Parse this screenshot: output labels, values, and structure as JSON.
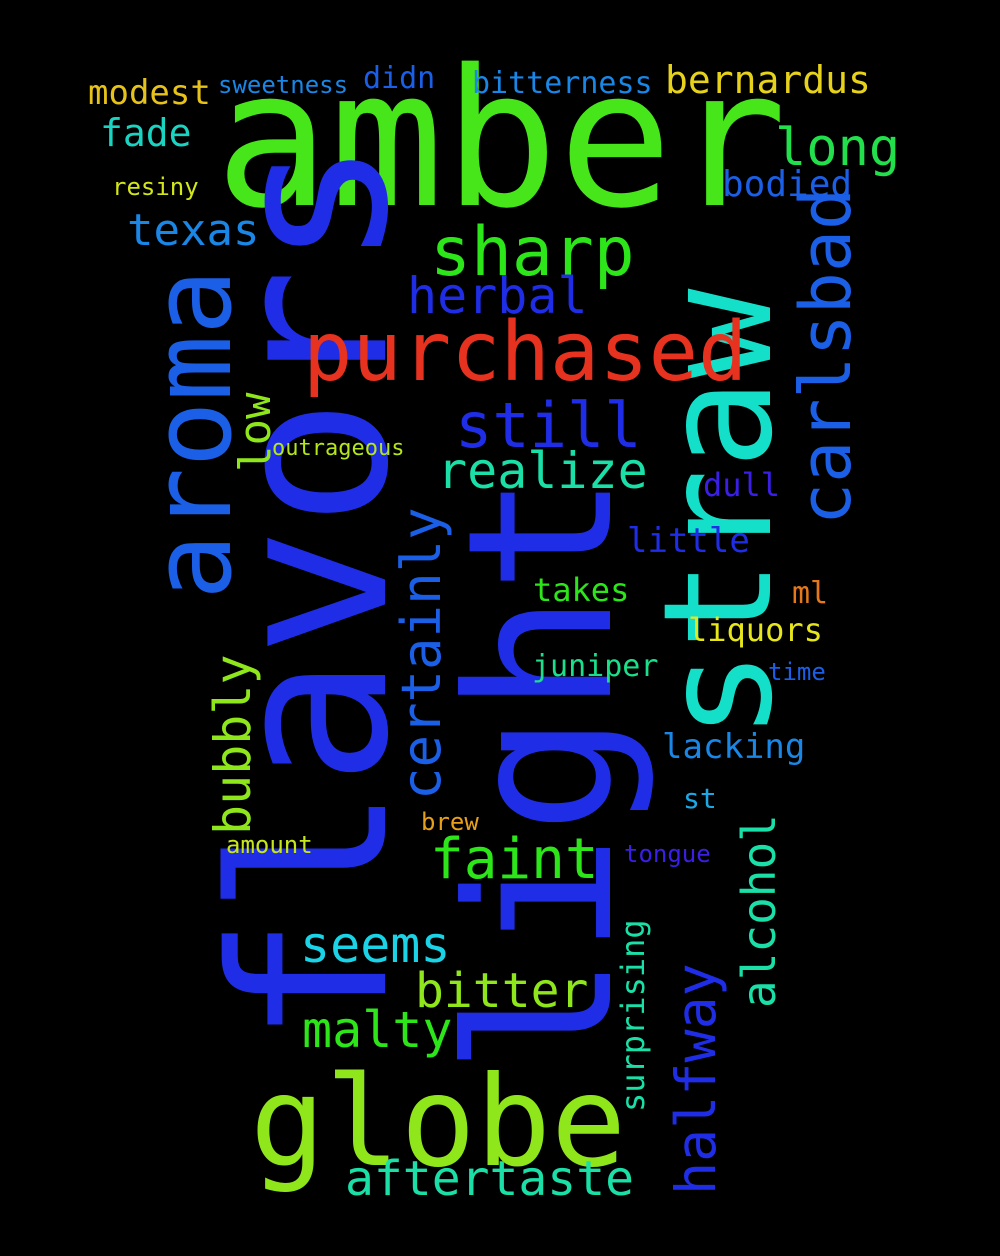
{
  "background": "#000000",
  "words": [
    {
      "text": "amber",
      "color": "#46e61a"
    },
    {
      "text": "flavors",
      "color": "#1f2ee6"
    },
    {
      "text": "light",
      "color": "#1f2ee6"
    },
    {
      "text": "straw",
      "color": "#14e0c9"
    },
    {
      "text": "globe",
      "color": "#8fe61a"
    },
    {
      "text": "aroma",
      "color": "#1a5fe6"
    },
    {
      "text": "purchased",
      "color": "#e6321f"
    },
    {
      "text": "sharp",
      "color": "#2de61a"
    },
    {
      "text": "carlsbad",
      "color": "#1a5fe6"
    },
    {
      "text": "still",
      "color": "#1f2ee6"
    },
    {
      "text": "realize",
      "color": "#1ae0a8"
    },
    {
      "text": "certainly",
      "color": "#1a5fe6"
    },
    {
      "text": "herbal",
      "color": "#1f2ee6"
    },
    {
      "text": "long",
      "color": "#22e04b"
    },
    {
      "text": "bernardus",
      "color": "#e6d21a"
    },
    {
      "text": "texas",
      "color": "#1a86e6"
    },
    {
      "text": "halfway",
      "color": "#1f2ee6"
    },
    {
      "text": "alcohol",
      "color": "#1ae0a8"
    },
    {
      "text": "aftertaste",
      "color": "#1ae0a8"
    },
    {
      "text": "faint",
      "color": "#2de61a"
    },
    {
      "text": "seems",
      "color": "#1ad3e6"
    },
    {
      "text": "bitter",
      "color": "#8fe61a"
    },
    {
      "text": "malty",
      "color": "#2de61a"
    },
    {
      "text": "bubbly",
      "color": "#8fe61a"
    },
    {
      "text": "low",
      "color": "#8fe61a"
    },
    {
      "text": "bodied",
      "color": "#1a5fe6"
    },
    {
      "text": "fade",
      "color": "#1ad3c1"
    },
    {
      "text": "modest",
      "color": "#e6c21a"
    },
    {
      "text": "sweetness",
      "color": "#1a86e6"
    },
    {
      "text": "didn",
      "color": "#1a5fe6"
    },
    {
      "text": "bitterness",
      "color": "#1a86e6"
    },
    {
      "text": "resiny",
      "color": "#d3e61a"
    },
    {
      "text": "outrageous",
      "color": "#b4e61a"
    },
    {
      "text": "dull",
      "color": "#3a1fe6"
    },
    {
      "text": "little",
      "color": "#1f2ee6"
    },
    {
      "text": "takes",
      "color": "#2de61a"
    },
    {
      "text": "ml",
      "color": "#e6781a"
    },
    {
      "text": "liquors",
      "color": "#e6e61a"
    },
    {
      "text": "juniper",
      "color": "#1ae08a"
    },
    {
      "text": "time",
      "color": "#1a5fe6"
    },
    {
      "text": "lacking",
      "color": "#1a86e6"
    },
    {
      "text": "st",
      "color": "#1aa8e6"
    },
    {
      "text": "brew",
      "color": "#e6a01a"
    },
    {
      "text": "amount",
      "color": "#c8e61a"
    },
    {
      "text": "tongue",
      "color": "#3a1fe6"
    },
    {
      "text": "surprising",
      "color": "#1ae0a8"
    }
  ]
}
